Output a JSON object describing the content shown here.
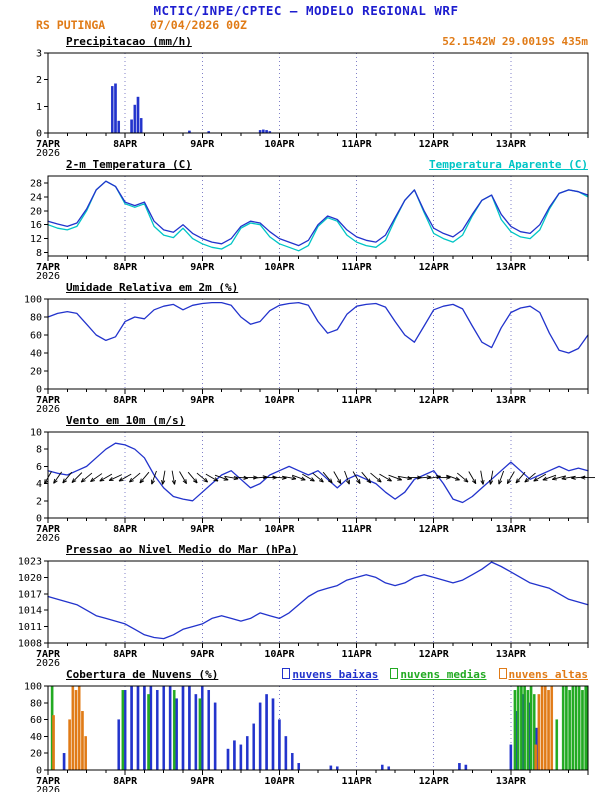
{
  "header": {
    "title": "MCTIC/INPE/CPTEC — MODELO REGIONAL WRF",
    "station": "RS PUTINGA",
    "run": "07/04/2026 00Z",
    "coords": "52.1542W 29.0019S 435m",
    "colors": {
      "title_blue": "#1d1dcf",
      "accent_orange": "#e07b17"
    }
  },
  "x_axis": {
    "xlim": [
      0,
      168
    ],
    "minor_tick_hours": 6,
    "ticks": [
      {
        "h": 0,
        "label": "7APR",
        "sublabel": "2026"
      },
      {
        "h": 24,
        "label": "8APR"
      },
      {
        "h": 48,
        "label": "9APR"
      },
      {
        "h": 72,
        "label": "10APR"
      },
      {
        "h": 96,
        "label": "11APR"
      },
      {
        "h": 120,
        "label": "12APR"
      },
      {
        "h": 144,
        "label": "13APR"
      }
    ]
  },
  "chart_data": [
    {
      "type": "bar",
      "title": "Precipitacao (mm/h)",
      "ylim": [
        0,
        3
      ],
      "yticks": [
        0,
        1,
        2,
        3
      ],
      "series": [
        {
          "name": "precipitacao",
          "color": "#2233cc",
          "points": [
            [
              20,
              1.75
            ],
            [
              21,
              1.85
            ],
            [
              22,
              0.45
            ],
            [
              26,
              0.5
            ],
            [
              27,
              1.05
            ],
            [
              28,
              1.35
            ],
            [
              29,
              0.55
            ],
            [
              44,
              0.08
            ],
            [
              50,
              0.06
            ],
            [
              66,
              0.1
            ],
            [
              67,
              0.12
            ],
            [
              68,
              0.1
            ],
            [
              69,
              0.06
            ]
          ]
        }
      ]
    },
    {
      "type": "line",
      "title": "2-m Temperatura (C)",
      "title2": "Temperatura Aparente (C)",
      "ylim": [
        7,
        30
      ],
      "yticks": [
        8,
        12,
        16,
        20,
        24,
        28
      ],
      "x_step": 3,
      "series": [
        {
          "name": "temperatura aparente",
          "color": "#00c5c5",
          "values": [
            16,
            15,
            14.5,
            15.5,
            20,
            26,
            28.5,
            27,
            22,
            21,
            22,
            15.5,
            13,
            12.3,
            15,
            12,
            10.5,
            9.5,
            9,
            10.5,
            15,
            16.5,
            16,
            12.5,
            10.5,
            9.5,
            8.5,
            10,
            15.5,
            18,
            17,
            13,
            11,
            10,
            9.5,
            11.5,
            17.5,
            23,
            26,
            19.5,
            13.5,
            12,
            11,
            13,
            18.5,
            23,
            24.5,
            17.5,
            14,
            12.5,
            12,
            14.5,
            20.5,
            25,
            26,
            25.5,
            24
          ]
        },
        {
          "name": "temperatura 2m",
          "color": "#2233cc",
          "values": [
            17,
            16.2,
            15.5,
            16.5,
            20.5,
            26,
            28.5,
            27,
            22.5,
            21.5,
            22.5,
            17,
            14.5,
            13.8,
            16,
            13.5,
            12,
            11,
            10.5,
            12,
            15.5,
            17,
            16.5,
            14,
            12,
            11,
            10,
            11.5,
            16,
            18.5,
            17.5,
            14.5,
            12.5,
            11.5,
            11,
            13,
            18,
            23,
            26,
            20,
            15,
            13.5,
            12.5,
            14.5,
            19,
            23,
            24.5,
            19,
            15.5,
            14,
            13.5,
            16,
            21,
            25,
            26,
            25.5,
            24.5
          ]
        }
      ]
    },
    {
      "type": "line",
      "title": "Umidade Relativa em 2m (%)",
      "ylim": [
        0,
        100
      ],
      "yticks": [
        0,
        20,
        40,
        60,
        80,
        100
      ],
      "x_step": 3,
      "series": [
        {
          "name": "umidade relativa",
          "color": "#2233cc",
          "values": [
            80,
            84,
            86,
            84,
            72,
            60,
            54,
            58,
            75,
            80,
            78,
            88,
            92,
            94,
            88,
            93,
            95,
            96,
            96,
            93,
            80,
            72,
            75,
            87,
            93,
            95,
            96,
            93,
            75,
            62,
            66,
            83,
            92,
            94,
            95,
            91,
            75,
            60,
            52,
            70,
            88,
            92,
            94,
            89,
            70,
            52,
            46,
            68,
            85,
            90,
            92,
            85,
            62,
            43,
            40,
            45,
            60
          ]
        }
      ]
    },
    {
      "type": "line",
      "title": "Vento em 10m (m/s)",
      "ylim": [
        0,
        10
      ],
      "yticks": [
        0,
        2,
        4,
        6,
        8,
        10
      ],
      "x_step": 3,
      "series": [
        {
          "name": "velocidade do vento",
          "color": "#2233cc",
          "values": [
            5.5,
            5.2,
            5,
            5.5,
            6,
            7,
            8,
            8.7,
            8.5,
            8,
            7,
            5,
            3.5,
            2.5,
            2.2,
            2,
            3,
            4,
            5,
            5.5,
            4.5,
            3.5,
            4,
            5,
            5.5,
            6,
            5.5,
            5,
            5.5,
            4.5,
            3.5,
            4.5,
            5,
            4.5,
            4,
            3,
            2.2,
            3,
            4.5,
            5,
            5.5,
            4,
            2.2,
            1.8,
            2.5,
            3.5,
            4.5,
            5.5,
            6.5,
            5.5,
            4.5,
            5,
            5.5,
            6,
            5.5,
            5.8,
            5.5
          ]
        }
      ],
      "barbs": {
        "name": "direcao do vento",
        "y": 4.7,
        "color": "#000000",
        "dirs": [
          210,
          215,
          220,
          225,
          230,
          235,
          240,
          245,
          240,
          230,
          220,
          200,
          190,
          170,
          150,
          140,
          130,
          120,
          110,
          100,
          95,
          90,
          85,
          90,
          95,
          100,
          110,
          120,
          130,
          140,
          150,
          160,
          150,
          140,
          130,
          120,
          110,
          100,
          90,
          85,
          80,
          90,
          110,
          130,
          150,
          170,
          190,
          200,
          210,
          220,
          230,
          240,
          250,
          255,
          260,
          265,
          270
        ]
      }
    },
    {
      "type": "line",
      "title": "Pressao ao Nivel Medio do Mar (hPa)",
      "ylim": [
        1008,
        1023
      ],
      "yticks": [
        1008,
        1011,
        1014,
        1017,
        1020,
        1023
      ],
      "x_step": 3,
      "series": [
        {
          "name": "pressao",
          "color": "#2233cc",
          "values": [
            1016.5,
            1016,
            1015.5,
            1015,
            1014,
            1013,
            1012.5,
            1012,
            1011.5,
            1010.5,
            1009.5,
            1009,
            1008.8,
            1009.5,
            1010.5,
            1011,
            1011.5,
            1012.5,
            1013,
            1012.5,
            1012,
            1012.5,
            1013.5,
            1013,
            1012.5,
            1013.5,
            1015,
            1016.5,
            1017.5,
            1018,
            1018.5,
            1019.5,
            1020,
            1020.5,
            1020,
            1019,
            1018.5,
            1019,
            1020,
            1020.5,
            1020,
            1019.5,
            1019,
            1019.5,
            1020.5,
            1021.5,
            1022.8,
            1022,
            1021,
            1020,
            1019,
            1018.5,
            1018,
            1017,
            1016,
            1015.5,
            1015
          ]
        }
      ]
    },
    {
      "type": "bar",
      "title": "Cobertura de Nuvens (%)",
      "ylim": [
        0,
        100
      ],
      "yticks": [
        0,
        20,
        40,
        60,
        80,
        100
      ],
      "legend": [
        {
          "label": "nuvens baixas",
          "color": "#2233cc"
        },
        {
          "label": "nuvens medias",
          "color": "#22aa22"
        },
        {
          "label": "nuvens altas",
          "color": "#e07b17"
        }
      ],
      "series": [
        {
          "name": "nuvens baixas",
          "color": "#2233cc",
          "points": [
            [
              5,
              20
            ],
            [
              22,
              60
            ],
            [
              24,
              95
            ],
            [
              26,
              100
            ],
            [
              28,
              100
            ],
            [
              30,
              100
            ],
            [
              32,
              100
            ],
            [
              34,
              95
            ],
            [
              36,
              100
            ],
            [
              38,
              100
            ],
            [
              40,
              85
            ],
            [
              42,
              100
            ],
            [
              44,
              100
            ],
            [
              46,
              90
            ],
            [
              48,
              100
            ],
            [
              50,
              95
            ],
            [
              52,
              80
            ],
            [
              56,
              25
            ],
            [
              58,
              35
            ],
            [
              60,
              30
            ],
            [
              62,
              40
            ],
            [
              64,
              55
            ],
            [
              66,
              80
            ],
            [
              68,
              90
            ],
            [
              70,
              85
            ],
            [
              72,
              60
            ],
            [
              74,
              40
            ],
            [
              76,
              20
            ],
            [
              78,
              8
            ],
            [
              88,
              5
            ],
            [
              90,
              4
            ],
            [
              104,
              6
            ],
            [
              106,
              4
            ],
            [
              128,
              8
            ],
            [
              130,
              6
            ],
            [
              144,
              30
            ],
            [
              146,
              70
            ],
            [
              148,
              90
            ],
            [
              150,
              80
            ],
            [
              152,
              50
            ]
          ]
        },
        {
          "name": "nuvens medias",
          "color": "#22aa22",
          "points": [
            [
              1,
              100
            ],
            [
              23,
              95
            ],
            [
              31,
              90
            ],
            [
              39,
              95
            ],
            [
              47,
              85
            ],
            [
              145,
              95
            ],
            [
              146,
              100
            ],
            [
              147,
              100
            ],
            [
              148,
              100
            ],
            [
              149,
              95
            ],
            [
              150,
              100
            ],
            [
              151,
              90
            ],
            [
              158,
              60
            ],
            [
              160,
              100
            ],
            [
              161,
              100
            ],
            [
              162,
              95
            ],
            [
              163,
              100
            ],
            [
              164,
              100
            ],
            [
              165,
              100
            ],
            [
              166,
              95
            ],
            [
              167,
              100
            ],
            [
              168,
              100
            ]
          ]
        },
        {
          "name": "nuvens altas",
          "color": "#e07b17",
          "points": [
            [
              2,
              65
            ],
            [
              7,
              60
            ],
            [
              8,
              100
            ],
            [
              9,
              95
            ],
            [
              10,
              100
            ],
            [
              11,
              70
            ],
            [
              12,
              40
            ],
            [
              152,
              30
            ],
            [
              153,
              90
            ],
            [
              154,
              100
            ],
            [
              155,
              100
            ],
            [
              156,
              95
            ],
            [
              157,
              100
            ]
          ]
        }
      ]
    }
  ]
}
